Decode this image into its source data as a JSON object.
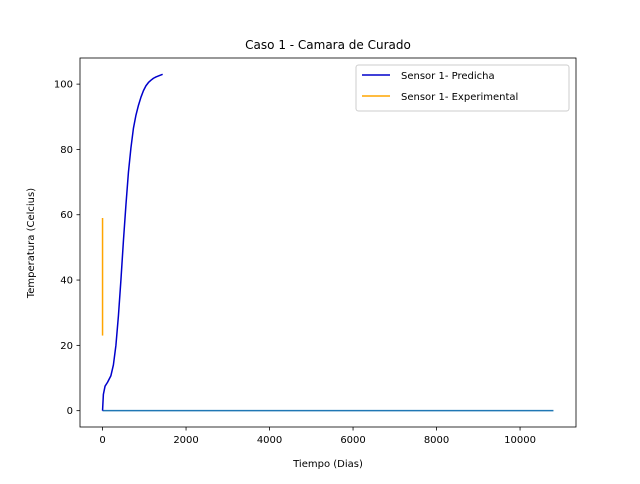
{
  "chart_data": {
    "type": "line",
    "title": "Caso 1 - Camara de Curado",
    "xlabel": "Tiempo (Dias)",
    "ylabel": "Temperatura (Celcius)",
    "xlim": [
      -540,
      11340
    ],
    "ylim": [
      -5,
      108
    ],
    "xticks": [
      0,
      2000,
      4000,
      6000,
      8000,
      10000
    ],
    "xtick_labels": [
      "0",
      "2000",
      "4000",
      "6000",
      "8000",
      "10000"
    ],
    "yticks": [
      0,
      20,
      40,
      60,
      80,
      100
    ],
    "ytick_labels": [
      "0",
      "20",
      "40",
      "60",
      "80",
      "100"
    ],
    "grid": false,
    "legend_position": "top-right",
    "series": [
      {
        "name": "Sensor 1- Predicha",
        "color": "#0000cc",
        "in_legend": true,
        "x": [
          0,
          20,
          60,
          120,
          200,
          260,
          320,
          380,
          440,
          500,
          560,
          620,
          680,
          740,
          800,
          860,
          920,
          980,
          1040,
          1100,
          1160,
          1220,
          1280,
          1340,
          1400,
          1440
        ],
        "y": [
          0,
          5,
          7.5,
          8.7,
          10.7,
          14,
          20,
          29,
          40,
          52,
          63,
          73,
          80.5,
          86.5,
          90.5,
          93.5,
          96,
          98,
          99.5,
          100.5,
          101.2,
          101.8,
          102.2,
          102.5,
          102.8,
          103
        ]
      },
      {
        "name": "Sensor 1- Experimental",
        "color": "#ffa500",
        "in_legend": true,
        "x": [
          0,
          0
        ],
        "y": [
          23,
          59
        ]
      },
      {
        "name": "",
        "color": "#1f77b4",
        "in_legend": false,
        "x": [
          0,
          10800
        ],
        "y": [
          0,
          0
        ]
      }
    ]
  }
}
